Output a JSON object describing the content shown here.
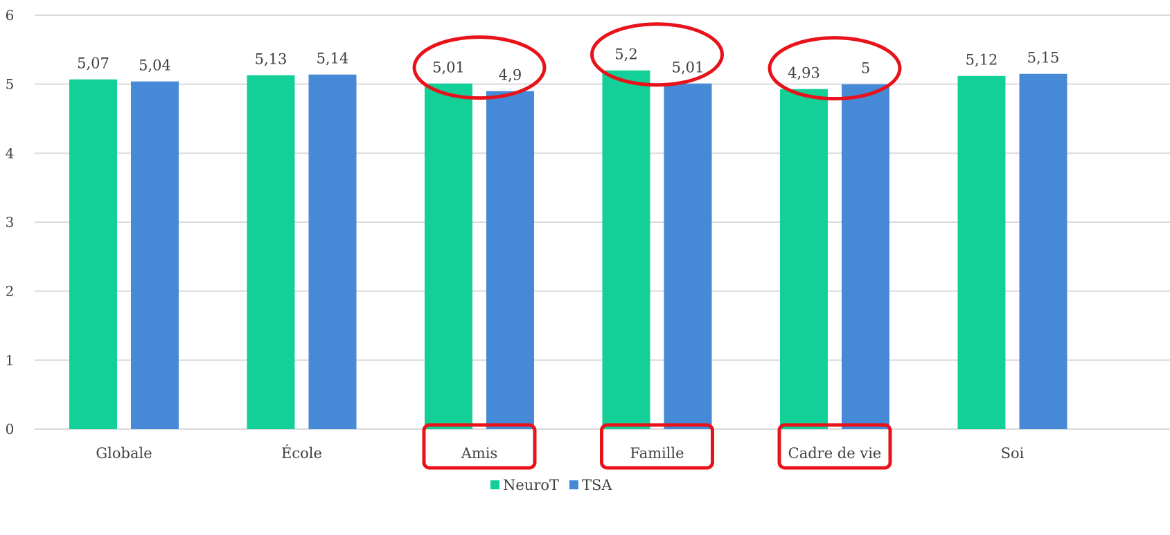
{
  "chart_data": {
    "type": "bar",
    "categories": [
      "Globale",
      "École",
      "Amis",
      "Famille",
      "Cadre de vie",
      "Soi"
    ],
    "series": [
      {
        "name": "NeuroT",
        "color": "#13CF98",
        "values": [
          5.07,
          5.13,
          5.01,
          5.2,
          4.93,
          5.12
        ],
        "labels": [
          "5,07",
          "5,13",
          "5,01",
          "5,2",
          "4,93",
          "5,12"
        ]
      },
      {
        "name": "TSA",
        "color": "#4689D6",
        "values": [
          5.04,
          5.14,
          4.9,
          5.01,
          5.0,
          5.15
        ],
        "labels": [
          "5,04",
          "5,14",
          "4,9",
          "5,01",
          "5",
          "5,15"
        ]
      }
    ],
    "ylim": [
      0,
      6
    ],
    "yticks": [
      0,
      1,
      2,
      3,
      4,
      5,
      6
    ],
    "grid": true,
    "legend_position": "bottom",
    "title": "",
    "xlabel": "",
    "ylabel": "",
    "highlighted_categories": [
      "Amis",
      "Famille",
      "Cadre de vie"
    ],
    "highlight_color": "#E8131A",
    "gridline_color": "#D9D9D9"
  }
}
